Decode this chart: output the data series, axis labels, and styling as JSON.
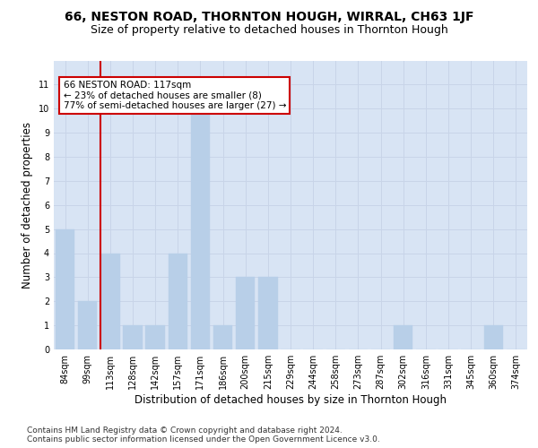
{
  "title": "66, NESTON ROAD, THORNTON HOUGH, WIRRAL, CH63 1JF",
  "subtitle": "Size of property relative to detached houses in Thornton Hough",
  "xlabel": "Distribution of detached houses by size in Thornton Hough",
  "ylabel": "Number of detached properties",
  "categories": [
    "84sqm",
    "99sqm",
    "113sqm",
    "128sqm",
    "142sqm",
    "157sqm",
    "171sqm",
    "186sqm",
    "200sqm",
    "215sqm",
    "229sqm",
    "244sqm",
    "258sqm",
    "273sqm",
    "287sqm",
    "302sqm",
    "316sqm",
    "331sqm",
    "345sqm",
    "360sqm",
    "374sqm"
  ],
  "values": [
    5,
    2,
    4,
    1,
    1,
    4,
    10,
    1,
    3,
    3,
    0,
    0,
    0,
    0,
    0,
    1,
    0,
    0,
    0,
    1,
    0
  ],
  "bar_color": "#b8cfe8",
  "bar_edge_color": "#b8cfe8",
  "highlight_line_color": "#cc0000",
  "annotation_line1": "66 NESTON ROAD: 117sqm",
  "annotation_line2": "← 23% of detached houses are smaller (8)",
  "annotation_line3": "77% of semi-detached houses are larger (27) →",
  "annotation_box_color": "#cc0000",
  "annotation_box_fill": "#ffffff",
  "ylim": [
    0,
    12
  ],
  "yticks": [
    0,
    1,
    2,
    3,
    4,
    5,
    6,
    7,
    8,
    9,
    10,
    11
  ],
  "grid_color": "#c8d4e8",
  "background_color": "#d8e4f4",
  "footer_line1": "Contains HM Land Registry data © Crown copyright and database right 2024.",
  "footer_line2": "Contains public sector information licensed under the Open Government Licence v3.0.",
  "title_fontsize": 10,
  "subtitle_fontsize": 9,
  "xlabel_fontsize": 8.5,
  "ylabel_fontsize": 8.5,
  "tick_fontsize": 7,
  "footer_fontsize": 6.5
}
